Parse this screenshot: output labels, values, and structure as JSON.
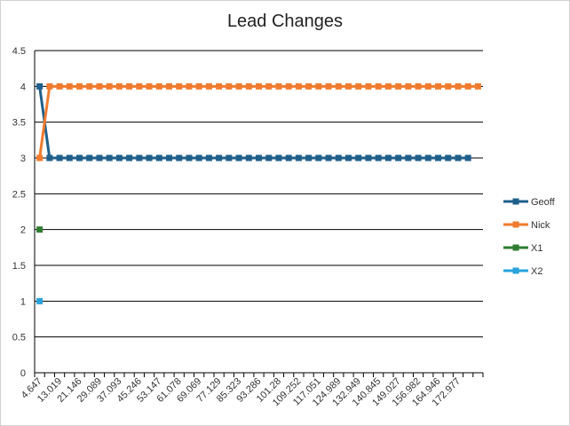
{
  "chart_data": {
    "type": "line",
    "title": "Lead Changes",
    "xlabel": "",
    "ylabel": "",
    "ylim": [
      0,
      4.5
    ],
    "y_ticks": [
      "0",
      "0.5",
      "1",
      "1.5",
      "2",
      "2.5",
      "3",
      "3.5",
      "4",
      "4.5"
    ],
    "x_tick_labels": [
      "4.647",
      "13.019",
      "21.146",
      "29.089",
      "37.093",
      "45.246",
      "53.147",
      "61.078",
      "69.069",
      "77.129",
      "85.323",
      "93.286",
      "101.28",
      "109.252",
      "117.051",
      "124.989",
      "132.949",
      "140.845",
      "149.027",
      "156.982",
      "164.946",
      "172.977"
    ],
    "category_count": 45,
    "grid": "horizontal",
    "legend_position": "right",
    "series": [
      {
        "name": "Geoff",
        "color": "#1f5f8b",
        "values": [
          4,
          3,
          3,
          3,
          3,
          3,
          3,
          3,
          3,
          3,
          3,
          3,
          3,
          3,
          3,
          3,
          3,
          3,
          3,
          3,
          3,
          3,
          3,
          3,
          3,
          3,
          3,
          3,
          3,
          3,
          3,
          3,
          3,
          3,
          3,
          3,
          3,
          3,
          3,
          3,
          3,
          3,
          3,
          3,
          null
        ]
      },
      {
        "name": "Nick",
        "color": "#f07b2e",
        "values": [
          3,
          4,
          4,
          4,
          4,
          4,
          4,
          4,
          4,
          4,
          4,
          4,
          4,
          4,
          4,
          4,
          4,
          4,
          4,
          4,
          4,
          4,
          4,
          4,
          4,
          4,
          4,
          4,
          4,
          4,
          4,
          4,
          4,
          4,
          4,
          4,
          4,
          4,
          4,
          4,
          4,
          4,
          4,
          4,
          4
        ]
      },
      {
        "name": "X1",
        "color": "#2e7d32",
        "values": [
          2
        ]
      },
      {
        "name": "X2",
        "color": "#29a3dc",
        "values": [
          1
        ]
      }
    ]
  }
}
